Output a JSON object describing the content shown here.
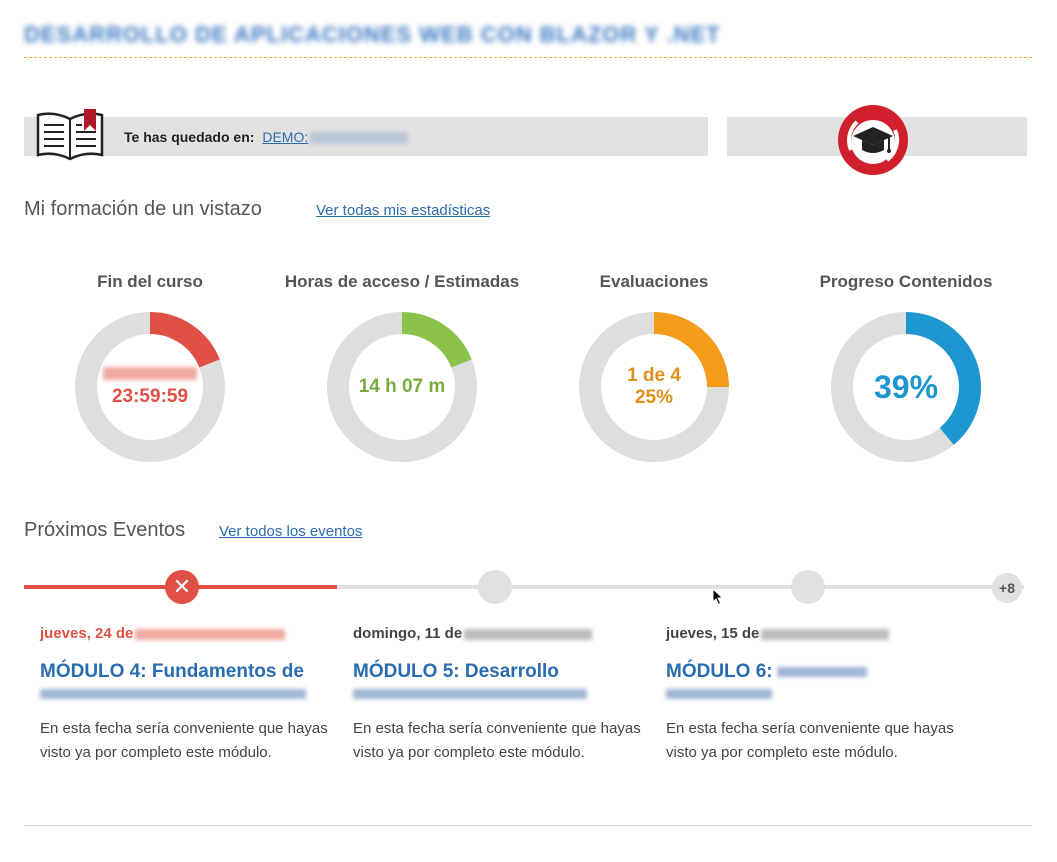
{
  "header": {
    "course_title": "DESARROLLO DE APLICACIONES WEB CON BLAZOR Y .NET"
  },
  "resume": {
    "prefix": "Te has quedado en:",
    "link_text": "DEMO:"
  },
  "glance": {
    "title": "Mi formación de un vistazo",
    "link": "Ver todas mis estadísticas",
    "gauges": [
      {
        "label": "Fin del curso",
        "line2": "23:59:59",
        "color": "#e05045",
        "progress": 0.19
      },
      {
        "label": "Horas de acceso / Estimadas",
        "line1": "14 h 07 m",
        "color": "#8bc34a",
        "progress": 0.19
      },
      {
        "label": "Evaluaciones",
        "line1": "1 de 4",
        "line2": "25%",
        "color": "#f59c1a",
        "progress": 0.25
      },
      {
        "label": "Progreso Contenidos",
        "line1": "39%",
        "color": "#1e96d0",
        "progress": 0.39
      }
    ]
  },
  "events": {
    "title": "Próximos Eventos",
    "link": "Ver todos los eventos",
    "more_badge": "+8",
    "close_glyph": "✕",
    "items": [
      {
        "date": "jueves, 24 de",
        "module": "MÓDULO 4: Fundamentos de",
        "desc": "En esta fecha sería conveniente que hayas visto ya por completo este módulo."
      },
      {
        "date": "domingo, 11 de",
        "module": "MÓDULO 5: Desarrollo",
        "desc": "En esta fecha sería conveniente que hayas visto ya por completo este módulo."
      },
      {
        "date": "jueves, 15 de",
        "module": "MÓDULO 6:",
        "desc": "En esta fecha sería conveniente que hayas visto ya por completo este módulo."
      }
    ]
  }
}
